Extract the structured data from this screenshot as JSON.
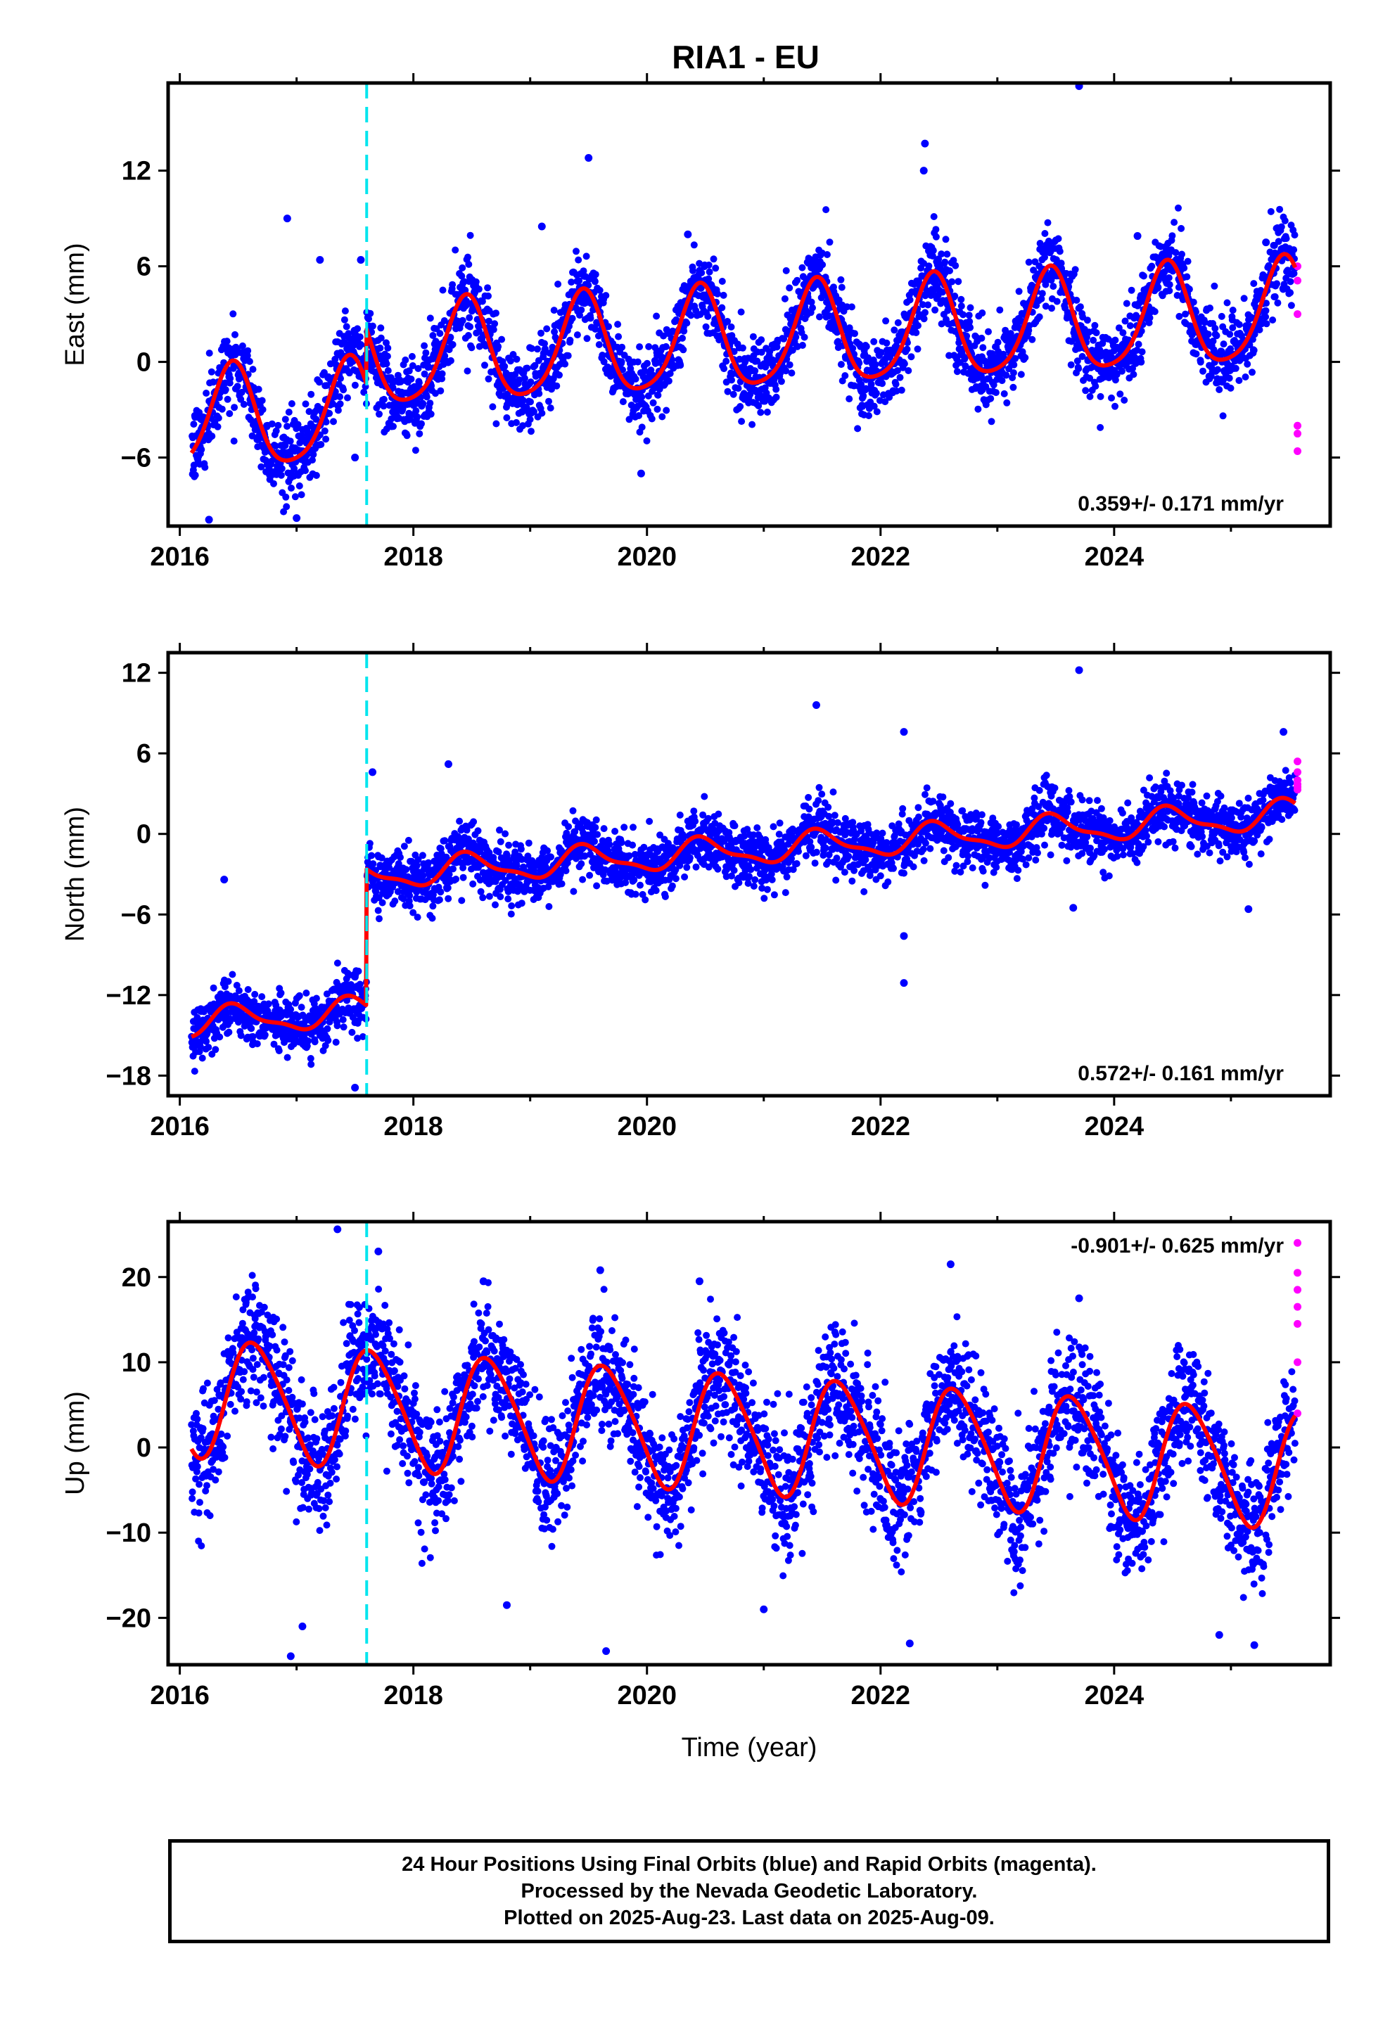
{
  "title": "RIA1 - EU",
  "colors": {
    "final_orbits": "#0000ff",
    "rapid_orbits": "#ff00ff",
    "model_fit": "#ff0000",
    "event_line": "#00e5ee",
    "frame": "#000000"
  },
  "chart_data": [
    {
      "type": "scatter",
      "component": "east",
      "ylabel": "East (mm)",
      "xlabel": "",
      "xlim": [
        2015.9,
        2025.85
      ],
      "ylim": [
        -10.3,
        17.5
      ],
      "xticks": [
        2016,
        2018,
        2020,
        2022,
        2024
      ],
      "xtick_labels": [
        "2016",
        "2018",
        "2020",
        "2022",
        "2024"
      ],
      "yticks": [
        -6,
        0,
        6,
        12
      ],
      "ytick_labels": [
        "−6",
        "0",
        "6",
        "12"
      ],
      "rate_text": "0.359+/- 0.171 mm/yr",
      "event_line_x": 2017.6,
      "model": {
        "step_year": 2017.6,
        "segments": [
          {
            "from": 2016.1,
            "to": 2017.6,
            "offset": -3.82,
            "slope": 0.359
          },
          {
            "from": 2017.6,
            "to": 2025.55,
            "offset": -0.37,
            "slope": 0.359
          }
        ],
        "annual_amplitude": 3.2,
        "annual_peak_year": 2016.45,
        "semiannual_amplitude": 0.55,
        "semiannual_phase": 0.4
      },
      "noise_sigma": 1.25,
      "outliers": [
        {
          "x": 2016.92,
          "y": 9.0
        },
        {
          "x": 2017.2,
          "y": 6.4
        },
        {
          "x": 2017.55,
          "y": 6.4
        },
        {
          "x": 2019.1,
          "y": 8.5
        },
        {
          "x": 2019.5,
          "y": 12.8
        },
        {
          "x": 2020.35,
          "y": 8.0
        },
        {
          "x": 2022.38,
          "y": 13.7
        },
        {
          "x": 2022.37,
          "y": 12.0
        },
        {
          "x": 2023.7,
          "y": 17.3
        },
        {
          "x": 2024.2,
          "y": 7.9
        },
        {
          "x": 2025.3,
          "y": 7.5
        },
        {
          "x": 2019.95,
          "y": -7.0
        },
        {
          "x": 2017.5,
          "y": -6.0
        },
        {
          "x": 2016.25,
          "y": -9.9
        },
        {
          "x": 2017.0,
          "y": -9.8
        }
      ],
      "rapid_points": [
        {
          "x": 2025.57,
          "y": 6.0
        },
        {
          "x": 2025.57,
          "y": 5.1
        },
        {
          "x": 2025.57,
          "y": 3.0
        },
        {
          "x": 2025.57,
          "y": -4.0
        },
        {
          "x": 2025.57,
          "y": -4.5
        },
        {
          "x": 2025.57,
          "y": -5.6
        }
      ]
    },
    {
      "type": "scatter",
      "component": "north",
      "ylabel": "North (mm)",
      "xlabel": "",
      "xlim": [
        2015.9,
        2025.85
      ],
      "ylim": [
        -19.5,
        13.5
      ],
      "xticks": [
        2016,
        2018,
        2020,
        2022,
        2024
      ],
      "xtick_labels": [
        "2016",
        "2018",
        "2020",
        "2022",
        "2024"
      ],
      "yticks": [
        -18,
        -12,
        -6,
        0,
        6,
        12
      ],
      "ytick_labels": [
        "−18",
        "−12",
        "−6",
        "0",
        "6",
        "12"
      ],
      "rate_text": "0.572+/- 0.161 mm/yr",
      "event_line_x": 2017.6,
      "model": {
        "step_year": 2017.6,
        "segments": [
          {
            "from": 2016.1,
            "to": 2017.6,
            "offset": -14.15,
            "slope": 0.572
          },
          {
            "from": 2017.6,
            "to": 2025.55,
            "offset": -4.0,
            "slope": 0.572
          }
        ],
        "annual_amplitude": 1.0,
        "annual_peak_year": 2016.48,
        "semiannual_amplitude": 0.35,
        "semiannual_phase": 1.2
      },
      "noise_sigma": 1.05,
      "outliers": [
        {
          "x": 2016.38,
          "y": -3.4
        },
        {
          "x": 2017.65,
          "y": 4.6
        },
        {
          "x": 2017.5,
          "y": -18.9
        },
        {
          "x": 2021.45,
          "y": 9.6
        },
        {
          "x": 2022.2,
          "y": 7.6
        },
        {
          "x": 2022.2,
          "y": -7.6
        },
        {
          "x": 2022.2,
          "y": -11.1
        },
        {
          "x": 2023.7,
          "y": 12.2
        },
        {
          "x": 2023.65,
          "y": -5.5
        },
        {
          "x": 2025.15,
          "y": -5.6
        },
        {
          "x": 2025.45,
          "y": 7.6
        },
        {
          "x": 2018.3,
          "y": 5.2
        }
      ],
      "rapid_points": [
        {
          "x": 2025.57,
          "y": 5.4
        },
        {
          "x": 2025.57,
          "y": 4.6
        },
        {
          "x": 2025.57,
          "y": 4.0
        },
        {
          "x": 2025.57,
          "y": 3.7
        },
        {
          "x": 2025.57,
          "y": 3.5
        },
        {
          "x": 2025.57,
          "y": 3.3
        }
      ]
    },
    {
      "type": "scatter",
      "component": "up",
      "ylabel": "Up (mm)",
      "xlabel": "Time (year)",
      "xlim": [
        2015.9,
        2025.85
      ],
      "ylim": [
        -25.5,
        26.5
      ],
      "xticks": [
        2016,
        2018,
        2020,
        2022,
        2024
      ],
      "xtick_labels": [
        "2016",
        "2018",
        "2020",
        "2022",
        "2024"
      ],
      "yticks": [
        -20,
        -10,
        0,
        10,
        20
      ],
      "ytick_labels": [
        "−20",
        "−10",
        "0",
        "10",
        "20"
      ],
      "rate_text": "-0.901+/- 0.625 mm/yr",
      "event_line_x": 2017.6,
      "model": {
        "step_year": 2017.6,
        "segments": [
          {
            "from": 2016.1,
            "to": 2025.55,
            "offset": 6.1,
            "slope": -0.901
          }
        ],
        "annual_amplitude": 6.8,
        "annual_peak_year": 2016.65,
        "semiannual_amplitude": 0.9,
        "semiannual_phase": 0.0
      },
      "noise_sigma": 3.6,
      "outliers": [
        {
          "x": 2017.35,
          "y": 25.6
        },
        {
          "x": 2017.7,
          "y": 23.0
        },
        {
          "x": 2016.95,
          "y": -24.5
        },
        {
          "x": 2019.65,
          "y": -23.9
        },
        {
          "x": 2022.25,
          "y": -23.0
        },
        {
          "x": 2025.2,
          "y": -23.2
        },
        {
          "x": 2022.6,
          "y": 21.5
        },
        {
          "x": 2019.6,
          "y": 20.8
        },
        {
          "x": 2018.6,
          "y": 19.5
        },
        {
          "x": 2020.45,
          "y": 19.5
        },
        {
          "x": 2023.7,
          "y": 17.5
        },
        {
          "x": 2024.9,
          "y": -22.0
        },
        {
          "x": 2017.05,
          "y": -21.0
        },
        {
          "x": 2021.0,
          "y": -19.0
        },
        {
          "x": 2018.8,
          "y": -18.5
        }
      ],
      "rapid_points": [
        {
          "x": 2025.57,
          "y": 24.0
        },
        {
          "x": 2025.57,
          "y": 20.5
        },
        {
          "x": 2025.57,
          "y": 18.5
        },
        {
          "x": 2025.57,
          "y": 16.5
        },
        {
          "x": 2025.57,
          "y": 14.5
        },
        {
          "x": 2025.57,
          "y": 10.0
        },
        {
          "x": 2025.57,
          "y": 4.0
        }
      ]
    }
  ],
  "caption": {
    "line1": "24 Hour Positions Using Final Orbits (blue) and Rapid Orbits (magenta).",
    "line2": "Processed by the Nevada Geodetic Laboratory.",
    "line3": "Plotted on 2025-Aug-23. Last data on 2025-Aug-09."
  }
}
